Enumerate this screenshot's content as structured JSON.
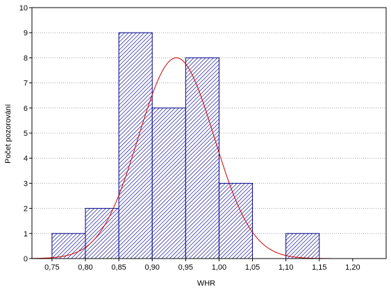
{
  "chart_data": {
    "type": "bar",
    "xlabel": "WHR",
    "ylabel": "Počet pozorování",
    "xlim": [
      0.72,
      1.25
    ],
    "ylim": [
      0,
      10
    ],
    "x_ticks": [
      0.75,
      0.8,
      0.85,
      0.9,
      0.95,
      1.0,
      1.05,
      1.1,
      1.15,
      1.2
    ],
    "x_tick_labels": [
      "0,75",
      "0,80",
      "0,85",
      "0,90",
      "0,95",
      "1,00",
      "1,05",
      "1,10",
      "1,15",
      "1,20"
    ],
    "y_ticks": [
      0,
      1,
      2,
      3,
      4,
      5,
      6,
      7,
      8,
      9,
      10
    ],
    "y_tick_labels": [
      "0",
      "1",
      "2",
      "3",
      "4",
      "5",
      "6",
      "7",
      "8",
      "9",
      "10"
    ],
    "grid": true,
    "bins": [
      {
        "start": 0.75,
        "end": 0.8,
        "count": 1
      },
      {
        "start": 0.8,
        "end": 0.85,
        "count": 2
      },
      {
        "start": 0.85,
        "end": 0.9,
        "count": 9
      },
      {
        "start": 0.9,
        "end": 0.95,
        "count": 6
      },
      {
        "start": 0.95,
        "end": 1.0,
        "count": 8
      },
      {
        "start": 1.0,
        "end": 1.05,
        "count": 3
      },
      {
        "start": 1.1,
        "end": 1.15,
        "count": 1
      }
    ],
    "normal_fit": {
      "mean": 0.936,
      "peak": 8.0,
      "std": 0.0566,
      "x_range": [
        0.72,
        1.2
      ]
    },
    "colors": {
      "bar_fill": "#ffffff",
      "bar_stroke": "#00008b",
      "hatch": "#00008b",
      "curve": "#cc0000",
      "grid": "#a0a0a0",
      "axis": "#000000"
    }
  }
}
